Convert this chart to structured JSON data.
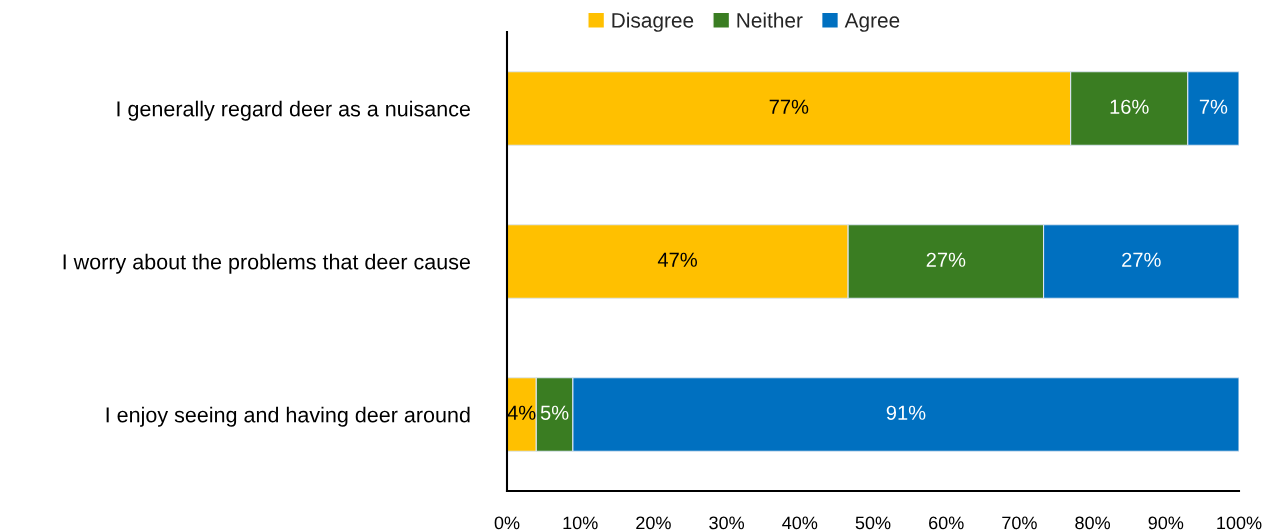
{
  "chart_data": {
    "type": "bar",
    "orientation": "horizontal",
    "stacked": true,
    "categories": [
      "I generally regard deer as a nuisance",
      "I worry about the problems that deer cause",
      "I enjoy seeing and having deer around"
    ],
    "series": [
      {
        "name": "Disagree",
        "color": "#ffc000",
        "values": [
          77,
          46.6,
          4
        ],
        "value_labels": [
          "77%",
          "47%",
          "4%"
        ]
      },
      {
        "name": "Neither",
        "color": "#3a7d22",
        "values": [
          16,
          26.7,
          5
        ],
        "value_labels": [
          "16%",
          "27%",
          "5%"
        ]
      },
      {
        "name": "Agree",
        "color": "#0070c0",
        "values": [
          7,
          26.7,
          91
        ],
        "value_labels": [
          "7%",
          "27%",
          "91%"
        ]
      }
    ],
    "xlim": [
      0,
      100
    ],
    "xticks": [
      {
        "value": 0,
        "label": "0%"
      },
      {
        "value": 10,
        "label": "10%"
      },
      {
        "value": 20,
        "label": "20%"
      },
      {
        "value": 30,
        "label": "30%"
      },
      {
        "value": 40,
        "label": "40%"
      },
      {
        "value": 50,
        "label": "50%"
      },
      {
        "value": 60,
        "label": "60%"
      },
      {
        "value": 70,
        "label": "70%"
      },
      {
        "value": 80,
        "label": "80%"
      },
      {
        "value": 90,
        "label": "90%"
      },
      {
        "value": 100,
        "label": "100%"
      }
    ],
    "grid": false,
    "legend": "top"
  }
}
